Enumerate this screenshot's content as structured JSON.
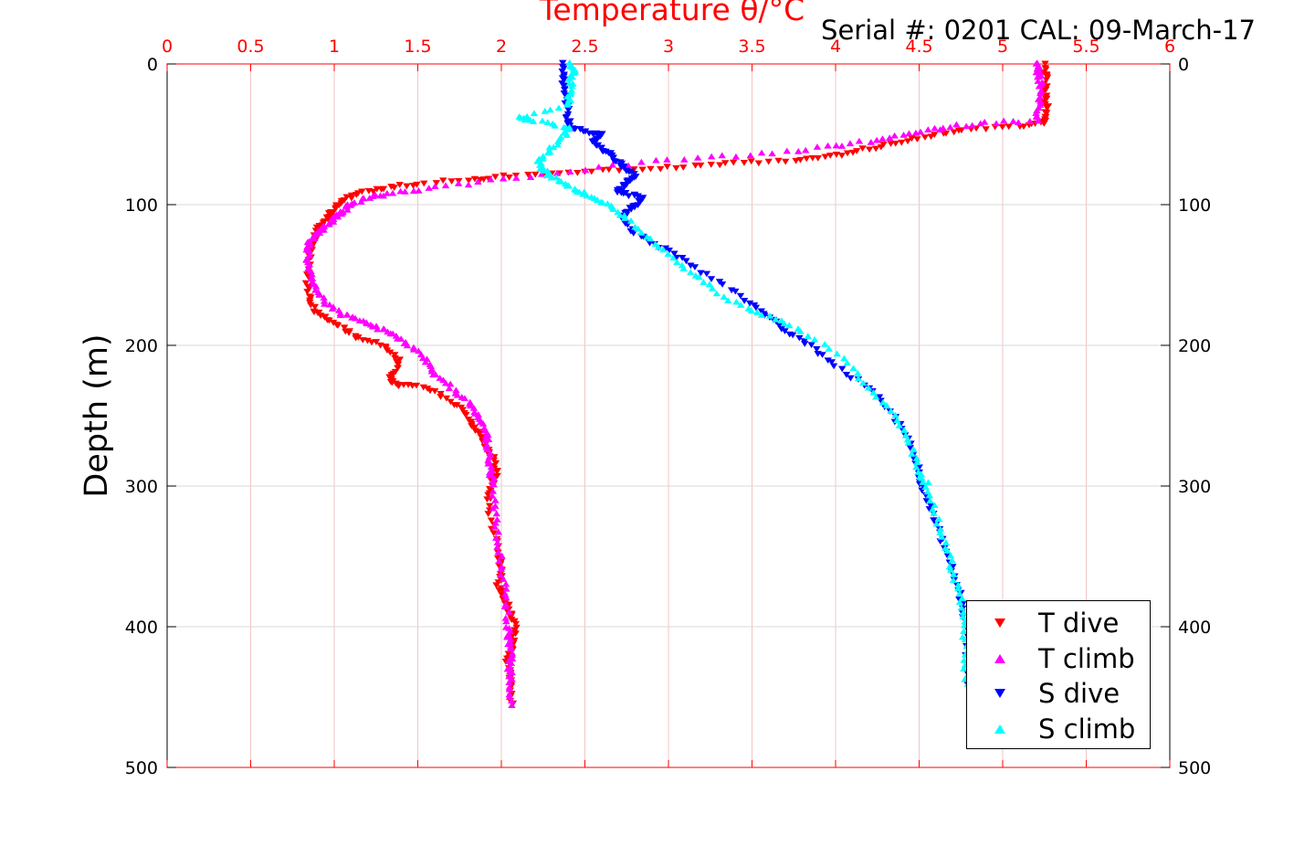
{
  "chart_data": {
    "type": "scatter",
    "title": "Temperature θ/°C",
    "subtitle": "Serial #: 0201  CAL: 09-March-17",
    "xlabel": "Temperature θ/°C",
    "ylabel": "Depth (m)",
    "xlim": [
      0,
      6
    ],
    "ylim": [
      0,
      500
    ],
    "y_reversed": true,
    "x_axis_position": "top",
    "x_ticks": [
      "0",
      "0.5",
      "1",
      "1.5",
      "2",
      "2.5",
      "3",
      "3.5",
      "4",
      "4.5",
      "5",
      "5.5",
      "6"
    ],
    "y_ticks": [
      "0",
      "100",
      "200",
      "300",
      "400",
      "500"
    ],
    "y_ticks_right": [
      "0",
      "100",
      "200",
      "300",
      "400",
      "500"
    ],
    "grid": true,
    "legend_position": "bottom-right",
    "colors": {
      "x_axis": "#ff0000",
      "t_dive": "#ff0000",
      "t_climb": "#ff00ff",
      "s_dive": "#0000ff",
      "s_climb": "#00ffff"
    },
    "series": [
      {
        "name": "T dive",
        "marker": "triangle-down",
        "color": "#ff0000",
        "x": [
          5.25,
          5.26,
          5.25,
          5.26,
          5.25,
          5.25,
          5.1,
          4.8,
          4.6,
          4.4,
          4.2,
          4.0,
          3.8,
          3.5,
          3.2,
          2.9,
          2.6,
          2.3,
          2.0,
          1.8,
          1.5,
          1.3,
          1.15,
          1.05,
          1.0,
          0.95,
          0.9,
          0.87,
          0.85,
          0.84,
          0.85,
          0.88,
          0.95,
          1.05,
          1.15,
          1.3,
          1.38,
          1.36,
          1.33,
          1.38,
          1.55,
          1.7,
          1.8,
          1.85,
          1.9,
          1.95,
          1.97,
          1.94,
          1.92,
          1.95,
          1.98,
          2.0,
          1.98,
          2.02,
          2.05,
          2.08,
          2.07,
          2.05,
          2.03,
          2.06,
          2.06,
          2.06
        ],
        "y": [
          0,
          10,
          20,
          30,
          40,
          42,
          44,
          46,
          50,
          55,
          60,
          65,
          68,
          70,
          72,
          74,
          76,
          78,
          80,
          82,
          85,
          88,
          92,
          97,
          103,
          110,
          118,
          126,
          135,
          150,
          165,
          175,
          180,
          188,
          195,
          200,
          210,
          220,
          225,
          228,
          230,
          240,
          250,
          260,
          270,
          280,
          290,
          300,
          310,
          330,
          350,
          360,
          370,
          380,
          390,
          400,
          410,
          420,
          422,
          430,
          440,
          455
        ]
      },
      {
        "name": "T climb",
        "marker": "triangle-up",
        "color": "#ff00ff",
        "x": [
          2.06,
          2.06,
          2.05,
          2.06,
          2.05,
          2.04,
          2.03,
          2.0,
          1.98,
          1.96,
          1.95,
          1.94,
          1.93,
          1.92,
          1.9,
          1.85,
          1.8,
          1.7,
          1.6,
          1.55,
          1.45,
          1.35,
          1.25,
          1.15,
          1.05,
          0.95,
          0.9,
          0.86,
          0.84,
          0.84,
          0.86,
          0.9,
          0.95,
          1.0,
          1.05,
          1.1,
          1.2,
          1.35,
          1.6,
          2.0,
          2.5,
          3.0,
          3.5,
          3.9,
          4.2,
          4.45,
          4.65,
          4.9,
          5.2,
          5.22,
          5.23,
          5.22,
          5.21,
          5.2
        ],
        "y": [
          455,
          440,
          430,
          420,
          410,
          400,
          380,
          360,
          340,
          320,
          300,
          290,
          280,
          270,
          260,
          250,
          240,
          230,
          220,
          210,
          200,
          192,
          187,
          182,
          178,
          170,
          160,
          150,
          140,
          130,
          125,
          120,
          115,
          110,
          105,
          100,
          95,
          92,
          88,
          82,
          75,
          68,
          65,
          60,
          55,
          50,
          45,
          42,
          40,
          30,
          20,
          10,
          5,
          0
        ]
      },
      {
        "name": "S dive",
        "marker": "triangle-down",
        "color": "#0000ff",
        "x": [
          2.36,
          2.37,
          2.38,
          2.39,
          2.4,
          2.42,
          2.5,
          2.6,
          2.55,
          2.6,
          2.65,
          2.7,
          2.75,
          2.8,
          2.75,
          2.7,
          2.72,
          2.85,
          2.8,
          2.75,
          2.72,
          2.8,
          2.95,
          3.1,
          3.3,
          3.5,
          3.6,
          3.7,
          3.85,
          4.0,
          4.2,
          4.35,
          4.45,
          4.5,
          4.52,
          4.58,
          4.64,
          4.7,
          4.75,
          4.78,
          4.79
        ],
        "y": [
          0,
          10,
          20,
          30,
          40,
          45,
          48,
          50,
          55,
          60,
          65,
          70,
          75,
          80,
          85,
          90,
          92,
          95,
          100,
          105,
          110,
          120,
          130,
          140,
          155,
          170,
          180,
          190,
          200,
          215,
          230,
          250,
          270,
          290,
          300,
          320,
          340,
          360,
          380,
          400,
          440
        ]
      },
      {
        "name": "S climb",
        "marker": "triangle-up",
        "color": "#00ffff",
        "x": [
          4.78,
          4.78,
          4.77,
          4.75,
          4.7,
          4.65,
          4.6,
          4.55,
          4.5,
          4.45,
          4.35,
          4.2,
          4.05,
          3.8,
          3.6,
          3.4,
          3.2,
          3.05,
          2.9,
          2.75,
          2.65,
          2.55,
          2.45,
          2.38,
          2.3,
          2.25,
          2.22,
          2.3,
          2.38,
          2.4,
          2.2,
          2.1,
          2.4,
          2.41,
          2.42,
          2.43,
          2.42
        ],
        "y": [
          440,
          420,
          400,
          380,
          360,
          340,
          320,
          300,
          290,
          270,
          250,
          230,
          210,
          190,
          180,
          170,
          155,
          140,
          125,
          110,
          100,
          95,
          90,
          85,
          80,
          75,
          70,
          60,
          50,
          45,
          40,
          38,
          30,
          20,
          10,
          5,
          0
        ]
      }
    ]
  }
}
